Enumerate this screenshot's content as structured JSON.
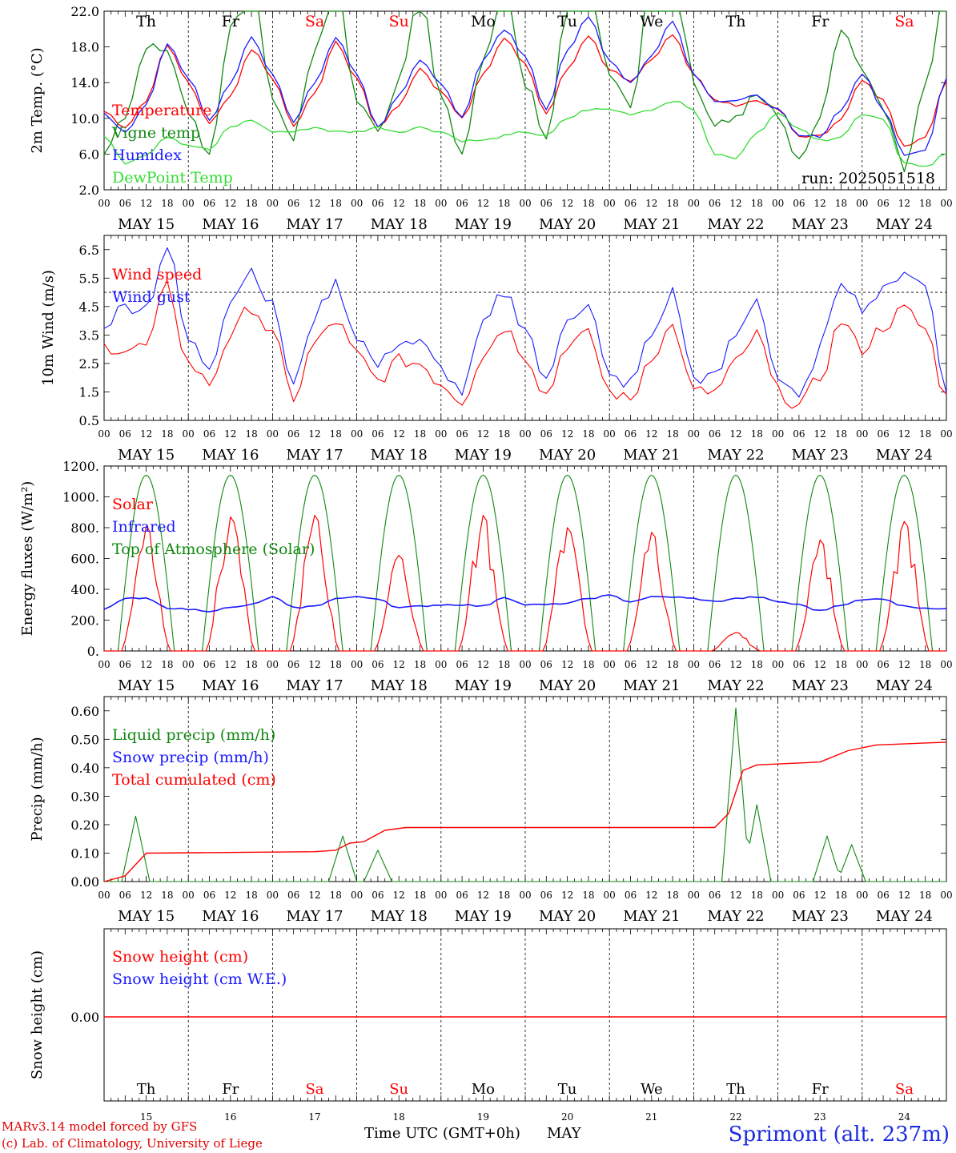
{
  "meta": {
    "run": "run: 2025051518",
    "location": "Sprimont (alt. 237m)",
    "model_line": "MARv3.14 model forced by GFS",
    "credit_line": "(c) Lab. of Climatology, University of Liege",
    "x_axis_label": "Time UTC (GMT+0h)",
    "month_label": "MAY"
  },
  "days": [
    {
      "abbr": "Th",
      "num": "15",
      "date": "MAY 15",
      "weekend": false
    },
    {
      "abbr": "Fr",
      "num": "16",
      "date": "MAY 16",
      "weekend": false
    },
    {
      "abbr": "Sa",
      "num": "17",
      "date": "MAY 17",
      "weekend": true
    },
    {
      "abbr": "Su",
      "num": "18",
      "date": "MAY 18",
      "weekend": true
    },
    {
      "abbr": "Mo",
      "num": "19",
      "date": "MAY 19",
      "weekend": false
    },
    {
      "abbr": "Tu",
      "num": "20",
      "date": "MAY 20",
      "weekend": false
    },
    {
      "abbr": "We",
      "num": "21",
      "date": "MAY 21",
      "weekend": false
    },
    {
      "abbr": "Th",
      "num": "22",
      "date": "MAY 22",
      "weekend": false
    },
    {
      "abbr": "Fr",
      "num": "23",
      "date": "MAY 23",
      "weekend": false
    },
    {
      "abbr": "Sa",
      "num": "24",
      "date": "MAY 24",
      "weekend": true
    }
  ],
  "hour_ticks": [
    "00",
    "06",
    "12",
    "18"
  ],
  "colors": {
    "red": "#ff0000",
    "green": "#118811",
    "blue": "#1a1aff",
    "lightgreen": "#33dd33",
    "weekend": "#ff0000",
    "title": "#1a2be0"
  },
  "chart_data": [
    {
      "type": "line",
      "ylabel": "2m Temp. (°C)",
      "ylim": [
        2,
        22
      ],
      "ytick_labels": [
        "2.0",
        "6.0",
        "10.0",
        "14.0",
        "18.0",
        "22.0"
      ],
      "legend": [
        "Temperature",
        "Vigne temp",
        "Humidex",
        "DewPoint Temp"
      ],
      "legend_colors": [
        "#ff0000",
        "#118811",
        "#1a1aff",
        "#33dd33"
      ],
      "x_hours": [
        0,
        6,
        12,
        18,
        24,
        30,
        36,
        42,
        48,
        54,
        60,
        66,
        72,
        78,
        84,
        90,
        96,
        102,
        108,
        114,
        120,
        126,
        132,
        138,
        144,
        150,
        156,
        162,
        168,
        174,
        180,
        186,
        192,
        198,
        204,
        210,
        216,
        222,
        228,
        234,
        240
      ],
      "series": [
        {
          "name": "Temperature",
          "color": "#ff0000",
          "values": [
            10.8,
            9.0,
            12.0,
            18.2,
            14.0,
            9.5,
            12.5,
            17.8,
            14.5,
            9.2,
            12.8,
            18.5,
            14.5,
            9.0,
            11.5,
            15.5,
            13.0,
            10.0,
            15.0,
            19.0,
            16.0,
            10.5,
            15.5,
            19.3,
            15.5,
            14.0,
            16.5,
            19.5,
            15.0,
            12.0,
            11.5,
            12.0,
            11.0,
            8.0,
            8.0,
            10.0,
            14.2,
            12.0,
            7.0,
            7.8,
            14.2
          ]
        },
        {
          "name": "Vigne temp",
          "color": "#118811",
          "values": [
            6.5,
            10.5,
            18.0,
            18.0,
            11.0,
            6.0,
            20.0,
            26.0,
            12.0,
            8.0,
            18.0,
            26.0,
            12.0,
            8.5,
            14.0,
            24.0,
            12.0,
            6.0,
            16.0,
            26.0,
            14.0,
            7.5,
            22.0,
            28.0,
            15.0,
            11.0,
            26.0,
            29.0,
            14.0,
            9.5,
            10.0,
            12.5,
            10.5,
            5.0,
            10.5,
            20.0,
            16.0,
            11.0,
            4.5,
            14.0,
            26.0
          ]
        },
        {
          "name": "Humidex",
          "color": "#1a1aff",
          "values": [
            10.5,
            8.5,
            11.5,
            18.3,
            14.5,
            9.8,
            14.0,
            19.0,
            15.0,
            9.5,
            14.0,
            19.0,
            15.0,
            9.0,
            12.5,
            16.5,
            14.0,
            10.0,
            16.5,
            20.0,
            17.0,
            11.0,
            17.5,
            21.5,
            16.5,
            14.0,
            17.0,
            21.0,
            15.0,
            12.0,
            12.0,
            12.5,
            11.0,
            8.0,
            8.0,
            11.0,
            15.0,
            11.0,
            6.0,
            6.5,
            14.5
          ]
        },
        {
          "name": "DewPoint Temp",
          "color": "#33dd33",
          "values": [
            8.0,
            5.0,
            6.0,
            8.0,
            7.0,
            6.5,
            9.0,
            9.8,
            8.5,
            8.5,
            9.0,
            8.5,
            8.5,
            9.0,
            8.5,
            9.0,
            8.5,
            7.5,
            7.5,
            8.0,
            8.5,
            8.0,
            10.0,
            11.0,
            11.0,
            10.5,
            11.0,
            12.0,
            11.0,
            6.0,
            5.5,
            8.5,
            10.5,
            9.0,
            7.5,
            8.0,
            10.5,
            10.0,
            5.0,
            4.5,
            6.0
          ]
        }
      ]
    },
    {
      "type": "line",
      "ylabel": "10m Wind (m/s)",
      "ylim": [
        0.5,
        7.0
      ],
      "ytick_labels": [
        "0.5",
        "1.5",
        "2.5",
        "3.5",
        "4.5",
        "5.5",
        "6.5"
      ],
      "legend": [
        "Wind speed",
        "Wind gust"
      ],
      "legend_colors": [
        "#ff0000",
        "#1a1aff"
      ],
      "reference_line": 5.0,
      "x_hours": [
        0,
        6,
        12,
        18,
        24,
        30,
        36,
        42,
        48,
        54,
        60,
        66,
        72,
        78,
        84,
        90,
        96,
        102,
        108,
        114,
        120,
        126,
        132,
        138,
        144,
        150,
        156,
        162,
        168,
        174,
        180,
        186,
        192,
        198,
        204,
        210,
        216,
        222,
        228,
        234,
        240
      ],
      "series": [
        {
          "name": "Wind speed",
          "color": "#ff0000",
          "values": [
            3.1,
            3.0,
            3.1,
            5.2,
            2.5,
            1.8,
            3.5,
            4.5,
            3.5,
            1.3,
            3.2,
            4.0,
            2.8,
            1.9,
            2.6,
            2.5,
            1.8,
            1.2,
            2.8,
            3.8,
            2.8,
            1.4,
            3.2,
            3.5,
            1.5,
            1.2,
            2.8,
            3.8,
            1.5,
            1.5,
            2.5,
            3.5,
            1.5,
            1.0,
            2.0,
            4.0,
            3.0,
            3.8,
            4.4,
            3.7,
            1.3
          ]
        },
        {
          "name": "Wind gust",
          "color": "#1a1aff",
          "values": [
            3.9,
            4.5,
            4.5,
            6.6,
            3.3,
            2.4,
            4.8,
            5.8,
            4.5,
            1.7,
            4.2,
            5.3,
            3.5,
            2.4,
            3.3,
            3.2,
            2.3,
            1.5,
            3.8,
            5.0,
            3.8,
            1.8,
            4.2,
            4.5,
            2.0,
            1.8,
            3.5,
            5.0,
            2.0,
            2.0,
            3.5,
            4.8,
            2.0,
            1.2,
            3.0,
            5.5,
            4.5,
            5.0,
            5.8,
            5.2,
            1.7
          ]
        }
      ]
    },
    {
      "type": "line",
      "ylabel": "Energy fluxes (W/m²)",
      "ylim": [
        0,
        1200
      ],
      "ytick_labels": [
        "0.",
        "200.",
        "400.",
        "600.",
        "800.",
        "1000.",
        "1200."
      ],
      "legend": [
        "Solar",
        "Infrared",
        "Top of Atmosphere (Solar)"
      ],
      "legend_colors": [
        "#ff0000",
        "#1a1aff",
        "#118811"
      ],
      "daily_toa_peak": 1140,
      "daily_solar_peak": [
        810,
        870,
        880,
        620,
        880,
        800,
        770,
        120,
        720,
        840
      ],
      "infrared_values": [
        270,
        340,
        340,
        280,
        270,
        260,
        280,
        300,
        350,
        280,
        290,
        340,
        350,
        340,
        280,
        290,
        300,
        300,
        290,
        350,
        300,
        300,
        310,
        340,
        360,
        320,
        350,
        350,
        340,
        320,
        340,
        350,
        320,
        300,
        260,
        300,
        330,
        340,
        290,
        280,
        270
      ]
    },
    {
      "type": "line",
      "ylabel": "Precip (mm/h)",
      "ylim": [
        0,
        0.65
      ],
      "ytick_labels": [
        "0.00",
        "0.10",
        "0.20",
        "0.30",
        "0.40",
        "0.50",
        "0.60"
      ],
      "legend": [
        "Liquid precip (mm/h)",
        "Snow precip (mm/h)",
        "Total cumulated (cm)"
      ],
      "legend_colors": [
        "#118811",
        "#1a1aff",
        "#ff0000"
      ],
      "liquid_peaks": [
        {
          "h": 9,
          "v": 0.23
        },
        {
          "h": 68,
          "v": 0.16
        },
        {
          "h": 78,
          "v": 0.11
        },
        {
          "h": 180,
          "v": 0.61
        },
        {
          "h": 186,
          "v": 0.27
        },
        {
          "h": 206,
          "v": 0.16
        },
        {
          "h": 213,
          "v": 0.13
        }
      ],
      "cumulated": [
        {
          "h": 0,
          "v": 0
        },
        {
          "h": 6,
          "v": 0.02
        },
        {
          "h": 12,
          "v": 0.1
        },
        {
          "h": 60,
          "v": 0.105
        },
        {
          "h": 66,
          "v": 0.11
        },
        {
          "h": 70,
          "v": 0.135
        },
        {
          "h": 74,
          "v": 0.14
        },
        {
          "h": 80,
          "v": 0.18
        },
        {
          "h": 86,
          "v": 0.19
        },
        {
          "h": 174,
          "v": 0.19
        },
        {
          "h": 178,
          "v": 0.24
        },
        {
          "h": 182,
          "v": 0.39
        },
        {
          "h": 186,
          "v": 0.41
        },
        {
          "h": 204,
          "v": 0.42
        },
        {
          "h": 212,
          "v": 0.46
        },
        {
          "h": 220,
          "v": 0.48
        },
        {
          "h": 240,
          "v": 0.49
        }
      ]
    },
    {
      "type": "line",
      "ylabel": "Snow height (cm)",
      "ytick_labels": [
        "0.00"
      ],
      "legend": [
        "Snow height (cm)",
        "Snow height (cm W.E.)"
      ],
      "legend_colors": [
        "#ff0000",
        "#1a1aff"
      ],
      "snow_height": 0.0
    }
  ]
}
